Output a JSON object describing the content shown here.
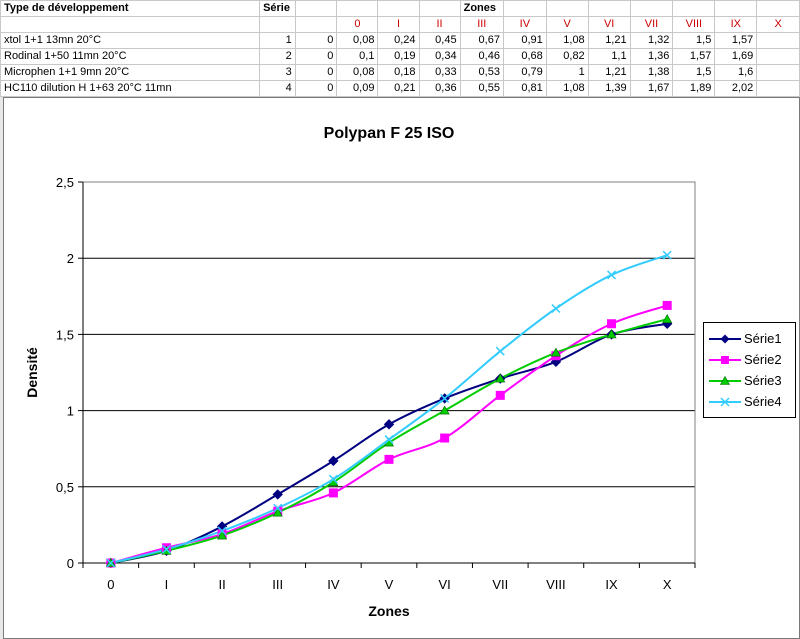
{
  "sheet": {
    "header": {
      "type_label": "Type de développement",
      "serie_label": "Série",
      "zones_label": "Zones",
      "zones": [
        "0",
        "I",
        "II",
        "III",
        "IV",
        "V",
        "VI",
        "VII",
        "VIII",
        "IX",
        "X"
      ]
    },
    "rows": [
      {
        "name": "xtol 1+1 13mn 20°C",
        "serie": "1",
        "values": [
          "0",
          "0,08",
          "0,24",
          "0,45",
          "0,67",
          "0,91",
          "1,08",
          "1,21",
          "1,32",
          "1,5",
          "1,57"
        ]
      },
      {
        "name": "Rodinal 1+50 11mn 20°C",
        "serie": "2",
        "values": [
          "0",
          "0,1",
          "0,19",
          "0,34",
          "0,46",
          "0,68",
          "0,82",
          "1,1",
          "1,36",
          "1,57",
          "1,69"
        ]
      },
      {
        "name": "Microphen 1+1 9mn 20°C",
        "serie": "3",
        "values": [
          "0",
          "0,08",
          "0,18",
          "0,33",
          "0,53",
          "0,79",
          "1",
          "1,21",
          "1,38",
          "1,5",
          "1,6"
        ]
      },
      {
        "name": "HC110 dilution H 1+63 20°C 11mn",
        "serie": "4",
        "values": [
          "0",
          "0,09",
          "0,21",
          "0,36",
          "0,55",
          "0,81",
          "1,08",
          "1,39",
          "1,67",
          "1,89",
          "2,02"
        ]
      }
    ]
  },
  "chart_data": {
    "type": "line",
    "title": "Polypan F 25 ISO",
    "xlabel": "Zones",
    "ylabel": "Densité",
    "categories": [
      "0",
      "I",
      "II",
      "III",
      "IV",
      "V",
      "VI",
      "VII",
      "VIII",
      "IX",
      "X"
    ],
    "ylim": [
      0,
      2.5
    ],
    "ytick_labels": [
      "0",
      "0,5",
      "1",
      "1,5",
      "2",
      "2,5"
    ],
    "grid": "horizontal",
    "legend": "right",
    "series": [
      {
        "name": "Série1",
        "color": "#000080",
        "marker": "diamond",
        "values": [
          0,
          0.08,
          0.24,
          0.45,
          0.67,
          0.91,
          1.08,
          1.21,
          1.32,
          1.5,
          1.57
        ]
      },
      {
        "name": "Série2",
        "color": "#ff00ff",
        "marker": "square",
        "values": [
          0,
          0.1,
          0.19,
          0.34,
          0.46,
          0.68,
          0.82,
          1.1,
          1.36,
          1.57,
          1.69
        ]
      },
      {
        "name": "Série3",
        "color": "#00cc00",
        "marker": "triangle",
        "values": [
          0,
          0.08,
          0.18,
          0.33,
          0.53,
          0.79,
          1,
          1.21,
          1.38,
          1.5,
          1.6
        ]
      },
      {
        "name": "Série4",
        "color": "#33ccff",
        "marker": "x",
        "values": [
          0,
          0.09,
          0.21,
          0.36,
          0.55,
          0.81,
          1.08,
          1.39,
          1.67,
          1.89,
          2.02
        ]
      }
    ]
  }
}
